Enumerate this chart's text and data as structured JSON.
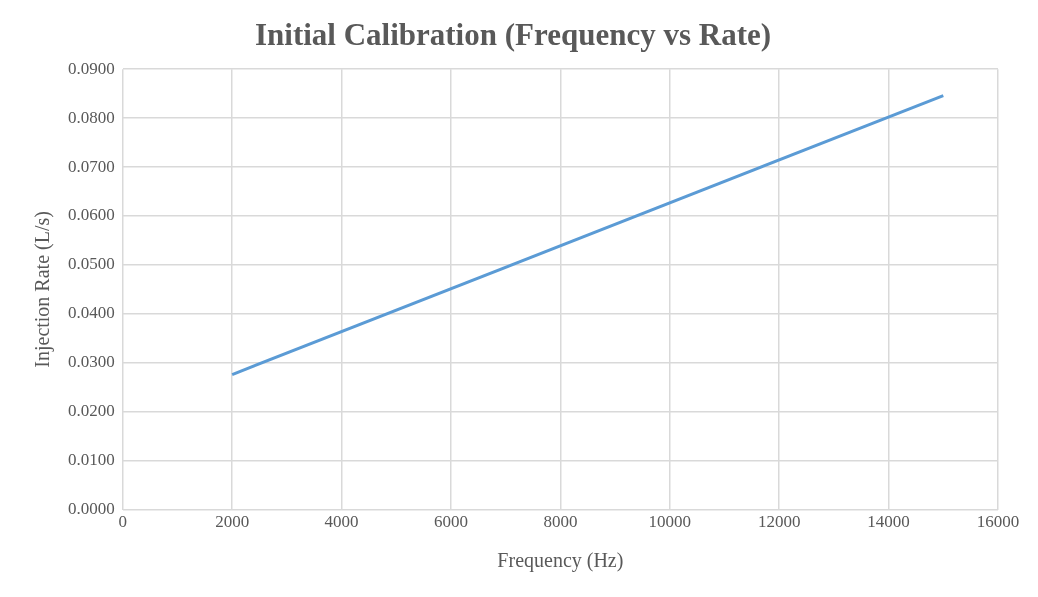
{
  "chart_data": {
    "type": "line",
    "title": "Initial Calibration (Frequency vs Rate)",
    "xlabel": "Frequency (Hz)",
    "ylabel": "Injection Rate (L/s)",
    "x": [
      2000,
      15000
    ],
    "series": [
      {
        "color": "#5b9bd5",
        "values": [
          0.0276,
          0.0846
        ]
      }
    ],
    "xlim": [
      0,
      16000
    ],
    "xticks": [
      0,
      2000,
      4000,
      6000,
      8000,
      10000,
      12000,
      14000,
      16000
    ],
    "ylim": [
      0,
      0.09
    ],
    "yticks": [
      {
        "value": 0,
        "label": "0.0000"
      },
      {
        "value": 0.01,
        "label": "0.0100"
      },
      {
        "value": 0.02,
        "label": "0.0200"
      },
      {
        "value": 0.03,
        "label": "0.0300"
      },
      {
        "value": 0.04,
        "label": "0.0400"
      },
      {
        "value": 0.05,
        "label": "0.0500"
      },
      {
        "value": 0.06,
        "label": "0.0600"
      },
      {
        "value": 0.07,
        "label": "0.0700"
      },
      {
        "value": 0.08,
        "label": "0.0800"
      },
      {
        "value": 0.09,
        "label": "0.0900"
      }
    ],
    "grid": true,
    "legend": false,
    "marker": "none",
    "line_style": "solid"
  }
}
